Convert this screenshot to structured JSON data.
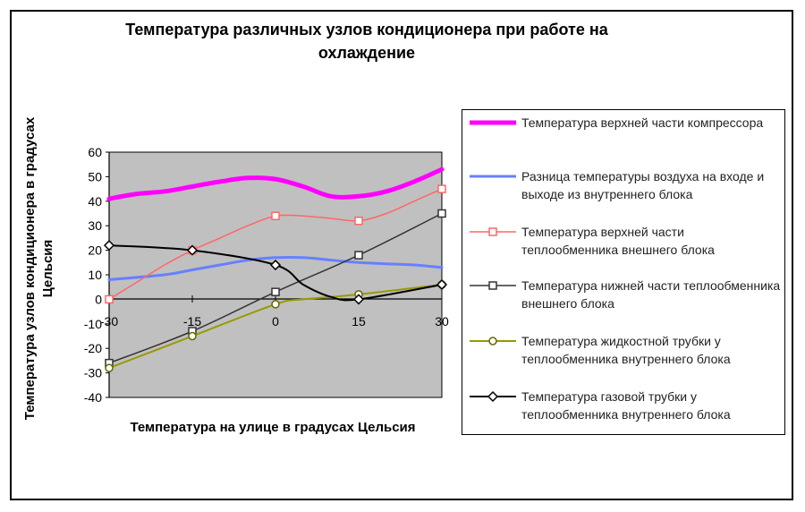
{
  "chart_data": {
    "type": "line",
    "title": "Температура различных узлов кондиционера при работе на охлаждение",
    "xlabel": "Температура на улице в градусах Цельсия",
    "ylabel": "Температура узлов кондиционера в градусах Цельсия",
    "x_ticks": [
      "-30",
      "-15",
      "0",
      "15",
      "30"
    ],
    "y_ticks": [
      "60",
      "50",
      "40",
      "30",
      "20",
      "10",
      "0",
      "-10",
      "-20",
      "-30",
      "-40"
    ],
    "xlim": [
      -30,
      30
    ],
    "ylim": [
      -40,
      60
    ],
    "grid": false,
    "plot_background": "#c0c0c0",
    "legend_position": "right",
    "series": [
      {
        "name": "Температура верхней части компрессора",
        "color": "#ff00ff",
        "marker": "none",
        "width": 5,
        "x": [
          -30,
          -25,
          -20,
          -15,
          -10,
          -5,
          0,
          5,
          10,
          15,
          20,
          25,
          30
        ],
        "y": [
          41,
          43,
          44,
          46,
          48,
          49.5,
          49,
          46,
          42,
          42,
          44,
          48,
          53
        ]
      },
      {
        "name": "Разница температуры воздуха на входе и выходе из внутреннего блока",
        "color": "#6680ff",
        "marker": "none",
        "width": 3,
        "x": [
          -30,
          -20,
          -15,
          -10,
          -5,
          0,
          5,
          10,
          15,
          20,
          25,
          30
        ],
        "y": [
          8,
          10,
          12,
          14,
          16,
          17,
          17,
          16,
          15,
          14.5,
          14,
          13
        ]
      },
      {
        "name": "Температура верхней части теплообменника внешнего блока",
        "color": "#ff6666",
        "marker": "square",
        "width": 1.5,
        "x": [
          -30,
          -25,
          -20,
          -15,
          -10,
          -5,
          0,
          5,
          10,
          15,
          20,
          25,
          30
        ],
        "y": [
          0,
          7,
          14,
          20,
          25,
          30,
          34,
          34,
          33,
          32,
          35,
          40,
          45
        ]
      },
      {
        "name": "Температура нижней части теплообменника внешнего блока",
        "color": "#333333",
        "marker": "square",
        "width": 1.5,
        "x": [
          -30,
          -15,
          0,
          15,
          30
        ],
        "y": [
          -26,
          -13,
          3,
          18,
          35
        ]
      },
      {
        "name": "Температура жидкостной трубки у теплообменника внутреннего блока",
        "color": "#999900",
        "marker": "circle",
        "width": 2,
        "x": [
          -30,
          -15,
          0,
          5,
          15,
          30
        ],
        "y": [
          -28,
          -15,
          -2,
          0,
          2,
          6
        ]
      },
      {
        "name": "Температура газовой трубки у теплообменника внутреннего блока",
        "color": "#000000",
        "marker": "diamond",
        "width": 2,
        "x": [
          -30,
          -15,
          0,
          5,
          10,
          15,
          30
        ],
        "y": [
          22,
          20,
          14,
          6,
          1,
          0,
          6
        ]
      }
    ]
  }
}
